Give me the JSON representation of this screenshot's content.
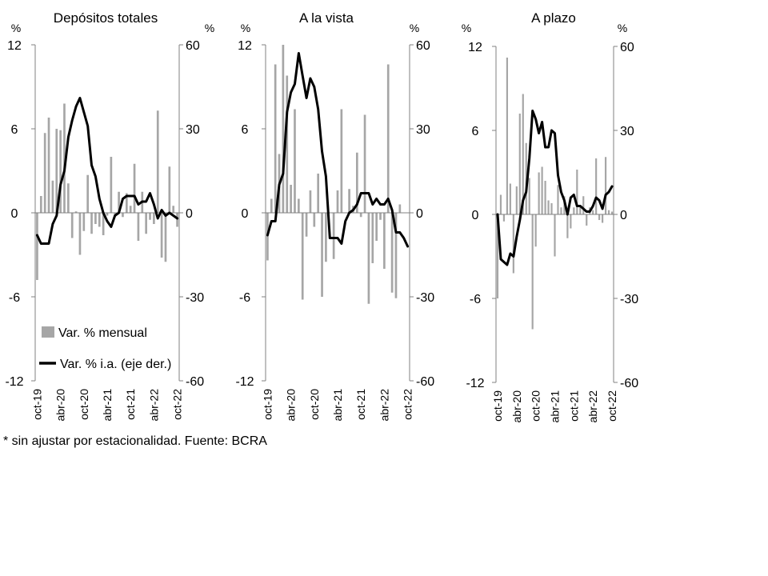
{
  "footnote": "* sin ajustar por estacionalidad. Fuente: BCRA",
  "legend": {
    "monthly": "Var. % mensual",
    "yoy": "Var. % i.a. (eje der.)"
  },
  "colors": {
    "bar": "#a6a6a6",
    "line": "#000000",
    "axis": "#808080"
  },
  "chart_data": [
    {
      "type": "bar+line",
      "title": "Depósitos totales",
      "ylabel_left": "%",
      "ylabel_right": "%",
      "ylim_left": [
        -12,
        12
      ],
      "ylim_right": [
        -60,
        60
      ],
      "yticks_left": [
        "12",
        "6",
        "0",
        "-6",
        "-12"
      ],
      "yticks_right": [
        "60",
        "30",
        "0",
        "-30",
        "-60"
      ],
      "xticks": [
        "oct-19",
        "abr-20",
        "oct-20",
        "abr-21",
        "oct-21",
        "abr-22",
        "oct-22"
      ],
      "legend": "in-plot lower-left",
      "x": [
        "oct-19",
        "nov-19",
        "dic-19",
        "ene-20",
        "feb-20",
        "mar-20",
        "abr-20",
        "may-20",
        "jun-20",
        "jul-20",
        "ago-20",
        "sep-20",
        "oct-20",
        "nov-20",
        "dic-20",
        "ene-21",
        "feb-21",
        "mar-21",
        "abr-21",
        "may-21",
        "jun-21",
        "jul-21",
        "ago-21",
        "sep-21",
        "oct-21",
        "nov-21",
        "dic-21",
        "ene-22",
        "feb-22",
        "mar-22",
        "abr-22",
        "may-22",
        "jun-22",
        "jul-22",
        "ago-22",
        "sep-22",
        "oct-22"
      ],
      "series": [
        {
          "name": "Var. % mensual",
          "axis": "left",
          "kind": "bar",
          "values": [
            -4.8,
            1.2,
            5.7,
            6.8,
            2.3,
            6.0,
            5.9,
            7.8,
            2.1,
            -1.8,
            0.1,
            -3.0,
            -1.3,
            2.7,
            -1.5,
            -0.8,
            -1.0,
            -1.6,
            -0.2,
            4.0,
            -0.3,
            1.5,
            -0.3,
            1.4,
            0.5,
            3.5,
            -2.0,
            1.5,
            -1.5,
            -0.5,
            -0.8,
            7.3,
            -3.2,
            -3.5,
            3.3,
            0.5,
            -1.0
          ]
        },
        {
          "name": "Var. % i.a. (eje der.)",
          "axis": "right",
          "kind": "line",
          "values": [
            -8,
            -11,
            -11,
            -11,
            -4,
            -1,
            10,
            15,
            27,
            33,
            38,
            41,
            36,
            31,
            17,
            13,
            5,
            0,
            -3,
            -5,
            -1,
            0,
            5,
            6,
            6,
            6,
            3,
            4,
            4,
            7,
            3,
            -2,
            1,
            -1,
            0,
            -1,
            -2
          ]
        }
      ]
    },
    {
      "type": "bar+line",
      "title": "A la vista",
      "ylabel_left": "%",
      "ylabel_right": "%",
      "ylim_left": [
        -12,
        12
      ],
      "ylim_right": [
        -60,
        60
      ],
      "yticks_left": [
        "12",
        "6",
        "0",
        "-6",
        "-12"
      ],
      "yticks_right": [
        "60",
        "30",
        "0",
        "-30",
        "-60"
      ],
      "xticks": [
        "oct-19",
        "abr-20",
        "oct-20",
        "abr-21",
        "oct-21",
        "abr-22",
        "oct-22"
      ],
      "x": [
        "oct-19",
        "nov-19",
        "dic-19",
        "ene-20",
        "feb-20",
        "mar-20",
        "abr-20",
        "may-20",
        "jun-20",
        "jul-20",
        "ago-20",
        "sep-20",
        "oct-20",
        "nov-20",
        "dic-20",
        "ene-21",
        "feb-21",
        "mar-21",
        "abr-21",
        "may-21",
        "jun-21",
        "jul-21",
        "ago-21",
        "sep-21",
        "oct-21",
        "nov-21",
        "dic-21",
        "ene-22",
        "feb-22",
        "mar-22",
        "abr-22",
        "may-22",
        "jun-22",
        "jul-22",
        "ago-22",
        "sep-22",
        "oct-22"
      ],
      "series": [
        {
          "name": "Var. % mensual",
          "axis": "left",
          "kind": "bar",
          "values": [
            -3.4,
            1.0,
            10.6,
            4.2,
            12.0,
            9.8,
            2.0,
            7.4,
            1.0,
            -6.2,
            -1.7,
            1.6,
            -1.0,
            2.8,
            -6.0,
            -3.5,
            0.0,
            -3.3,
            1.6,
            7.4,
            0.0,
            1.7,
            0.5,
            4.3,
            -0.3,
            7.0,
            -6.5,
            -3.6,
            -2.0,
            -0.5,
            -4.0,
            10.6,
            -5.7,
            -6.1,
            0.6,
            0.0,
            0.0
          ]
        },
        {
          "name": "Var. % i.a. (eje der.)",
          "axis": "right",
          "kind": "line",
          "values": [
            -8,
            -3,
            -3,
            10,
            14,
            36,
            43,
            46,
            57,
            49,
            41,
            48,
            45,
            37,
            22,
            13,
            -9,
            -9,
            -9,
            -11,
            -3,
            0,
            1,
            3,
            7,
            7,
            7,
            3,
            5,
            3,
            3,
            5,
            1,
            -7,
            -7,
            -9,
            -12
          ]
        }
      ]
    },
    {
      "type": "bar+line",
      "title": "A plazo",
      "ylabel_left": "%",
      "ylabel_right": "%",
      "ylim_left": [
        -12,
        12
      ],
      "ylim_right": [
        -60,
        60
      ],
      "yticks_left": [
        "12",
        "6",
        "0",
        "-6",
        "-12"
      ],
      "yticks_right": [
        "60",
        "30",
        "0",
        "-30",
        "-60"
      ],
      "xticks": [
        "oct-19",
        "abr-20",
        "oct-20",
        "abr-21",
        "oct-21",
        "abr-22",
        "oct-22"
      ],
      "x": [
        "oct-19",
        "nov-19",
        "dic-19",
        "ene-20",
        "feb-20",
        "mar-20",
        "abr-20",
        "may-20",
        "jun-20",
        "jul-20",
        "ago-20",
        "sep-20",
        "oct-20",
        "nov-20",
        "dic-20",
        "ene-21",
        "feb-21",
        "mar-21",
        "abr-21",
        "may-21",
        "jun-21",
        "jul-21",
        "ago-21",
        "sep-21",
        "oct-21",
        "nov-21",
        "dic-21",
        "ene-22",
        "feb-22",
        "mar-22",
        "abr-22",
        "may-22",
        "jun-22",
        "jul-22",
        "ago-22",
        "sep-22",
        "oct-22"
      ],
      "series": [
        {
          "name": "Var. % mensual",
          "axis": "left",
          "kind": "bar",
          "values": [
            -6.0,
            1.4,
            -0.5,
            11.2,
            2.2,
            -4.2,
            2.0,
            7.2,
            8.6,
            5.1,
            2.6,
            -8.2,
            -2.3,
            3.0,
            3.4,
            2.4,
            1.0,
            0.8,
            -3.0,
            2.1,
            0.5,
            1.3,
            -1.7,
            -1.0,
            0.5,
            3.2,
            0.6,
            1.3,
            -0.8,
            0.5,
            0.3,
            4.0,
            -0.4,
            -0.6,
            4.1,
            0.3,
            0.2
          ]
        },
        {
          "name": "Var. % i.a. (eje der.)",
          "axis": "right",
          "kind": "line",
          "values": [
            0,
            -16,
            -17,
            -18,
            -14,
            -15,
            -8,
            -2,
            5,
            8,
            20,
            37,
            34,
            29,
            33,
            24,
            24,
            30,
            29,
            14,
            8,
            5,
            0,
            6,
            7,
            3,
            3,
            2,
            1,
            1,
            3,
            6,
            5,
            2,
            7,
            8,
            10
          ]
        }
      ]
    }
  ]
}
